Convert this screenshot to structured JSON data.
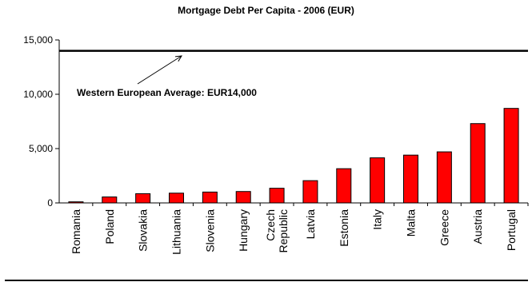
{
  "chart_data": {
    "type": "bar",
    "title": "Mortgage Debt Per Capita - 2006 (EUR)",
    "xlabel": "",
    "ylabel": "",
    "ylim": [
      0,
      15000
    ],
    "yticks": [
      0,
      5000,
      10000,
      15000
    ],
    "ytick_labels": [
      "0",
      "5,000",
      "10,000",
      "15,000"
    ],
    "grid": false,
    "legend": "none",
    "categories": [
      [
        "Romania"
      ],
      [
        "Poland"
      ],
      [
        "Slovakia"
      ],
      [
        "Lithuania"
      ],
      [
        "Slovenia"
      ],
      [
        "Hungary"
      ],
      [
        "Czech",
        "Republic"
      ],
      [
        "Latvia"
      ],
      [
        "Estonia"
      ],
      [
        "Italy"
      ],
      [
        "Malta"
      ],
      [
        "Greece"
      ],
      [
        "Austria"
      ],
      [
        "Portugal"
      ]
    ],
    "values": [
      100,
      550,
      850,
      900,
      1000,
      1050,
      1350,
      2050,
      3150,
      4150,
      4400,
      4700,
      7300,
      8700
    ],
    "bar_color": "#ff0000",
    "reference_line": {
      "value": 14000,
      "label": "Western European Average: EUR14,000",
      "color": "#000000"
    }
  }
}
